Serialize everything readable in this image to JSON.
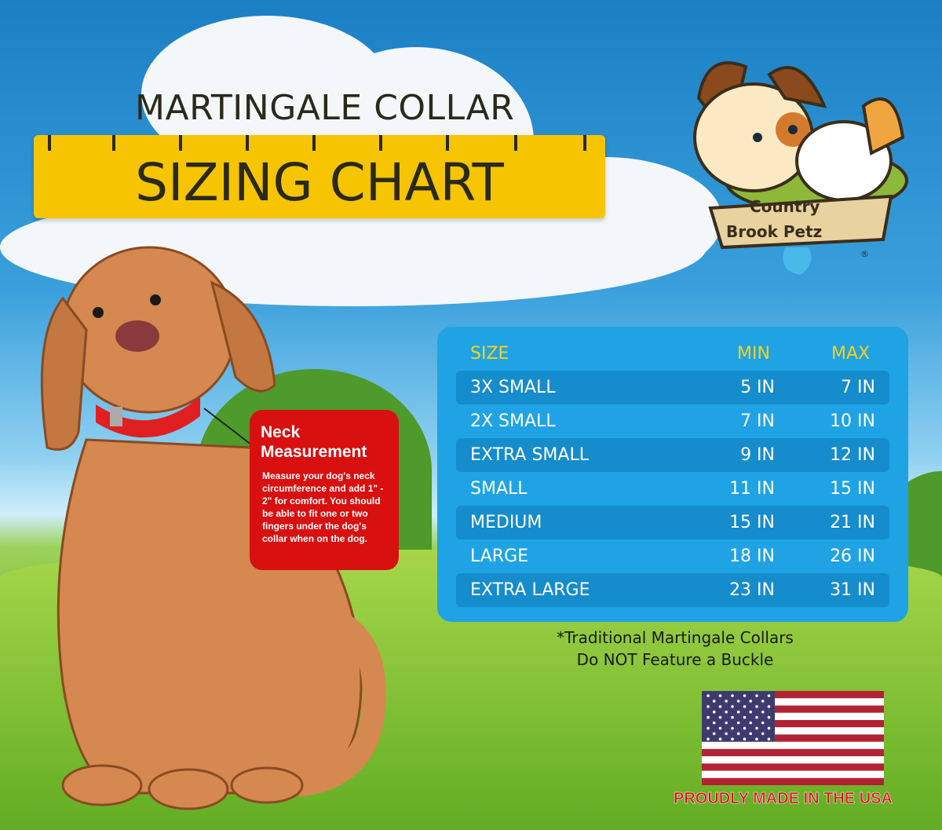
{
  "header": {
    "title_line1": "MARTINGALE COLLAR",
    "title_line2": "SIZING CHART"
  },
  "logo": {
    "text_line1": "Country",
    "text_line2": "Brook Petz",
    "mark": "®"
  },
  "callout": {
    "title_line1": "Neck",
    "title_line2": "Measurement",
    "body": "Measure your dog's neck circumference and add 1\" - 2\" for comfort. You should be able to fit one or two fingers under the dog's collar when on the dog."
  },
  "table": {
    "columns": [
      "SIZE",
      "MIN",
      "MAX"
    ],
    "rows": [
      {
        "size": "3X SMALL",
        "min": "5 IN",
        "max": "7 IN"
      },
      {
        "size": "2X SMALL",
        "min": "7 IN",
        "max": "10 IN"
      },
      {
        "size": "EXTRA SMALL",
        "min": "9 IN",
        "max": "12 IN"
      },
      {
        "size": "SMALL",
        "min": "11 IN",
        "max": "15 IN"
      },
      {
        "size": "MEDIUM",
        "min": "15 IN",
        "max": "21 IN"
      },
      {
        "size": "LARGE",
        "min": "18 IN",
        "max": "26 IN"
      },
      {
        "size": "EXTRA LARGE",
        "min": "23 IN",
        "max": "31 IN"
      }
    ]
  },
  "footnote": {
    "line1": "*Traditional Martingale Collars",
    "line2": "Do NOT Feature a Buckle"
  },
  "badge": {
    "text": "PROUDLY MADE IN THE USA",
    "icon": "us-flag-icon"
  },
  "colors": {
    "panel": "#1fa3e4",
    "header_text": "#f7d21a",
    "ruler": "#f6c400",
    "callout": "#d81010"
  }
}
